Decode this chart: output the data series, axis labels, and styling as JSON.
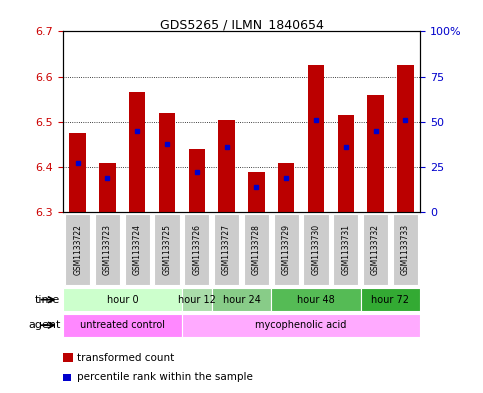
{
  "title": "GDS5265 / ILMN_1840654",
  "samples": [
    "GSM1133722",
    "GSM1133723",
    "GSM1133724",
    "GSM1133725",
    "GSM1133726",
    "GSM1133727",
    "GSM1133728",
    "GSM1133729",
    "GSM1133730",
    "GSM1133731",
    "GSM1133732",
    "GSM1133733"
  ],
  "bar_bottom": 6.3,
  "red_tops": [
    6.475,
    6.41,
    6.565,
    6.52,
    6.44,
    6.505,
    6.39,
    6.41,
    6.625,
    6.515,
    6.56,
    6.625
  ],
  "blue_values": [
    6.41,
    6.375,
    6.48,
    6.45,
    6.39,
    6.445,
    6.355,
    6.375,
    6.505,
    6.445,
    6.48,
    6.505
  ],
  "ylim_left": [
    6.3,
    6.7
  ],
  "ylim_right": [
    0,
    100
  ],
  "yticks_left": [
    6.3,
    6.4,
    6.5,
    6.6,
    6.7
  ],
  "yticks_right": [
    0,
    25,
    50,
    75,
    100
  ],
  "ytick_labels_right": [
    "0",
    "25",
    "50",
    "75",
    "100%"
  ],
  "red_color": "#bb0000",
  "blue_color": "#0000cc",
  "bar_width": 0.55,
  "time_groups": [
    {
      "label": "hour 0",
      "start": 0,
      "end": 3,
      "color": "#ccffcc"
    },
    {
      "label": "hour 12",
      "start": 4,
      "end": 4,
      "color": "#aaddaa"
    },
    {
      "label": "hour 24",
      "start": 5,
      "end": 6,
      "color": "#88cc88"
    },
    {
      "label": "hour 48",
      "start": 7,
      "end": 9,
      "color": "#55bb55"
    },
    {
      "label": "hour 72",
      "start": 10,
      "end": 11,
      "color": "#33aa33"
    }
  ],
  "agent_groups": [
    {
      "label": "untreated control",
      "start": 0,
      "end": 3,
      "color": "#ff88ff"
    },
    {
      "label": "mycophenolic acid",
      "start": 4,
      "end": 11,
      "color": "#ffaaff"
    }
  ],
  "legend_red_label": "transformed count",
  "legend_blue_label": "percentile rank within the sample",
  "bg_color": "#ffffff",
  "grid_color": "#000000",
  "tick_color_left": "#cc0000",
  "tick_color_right": "#0000cc",
  "sample_bg_color": "#cccccc"
}
